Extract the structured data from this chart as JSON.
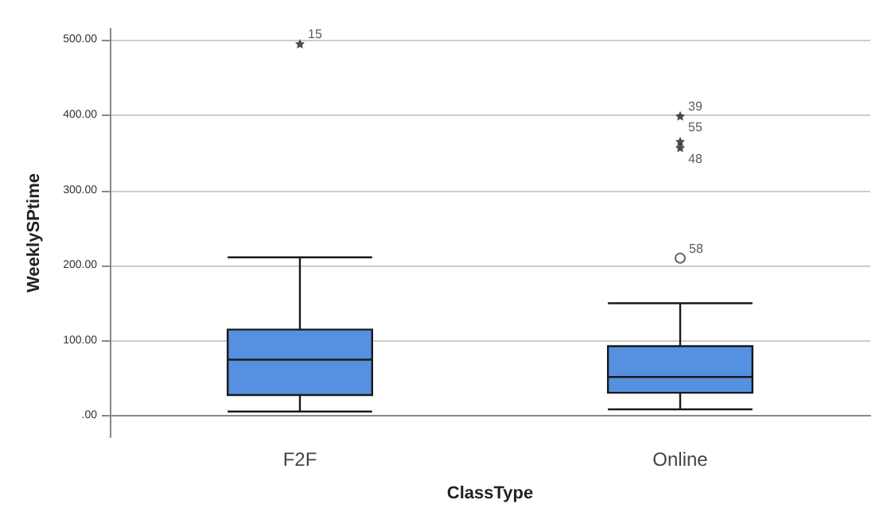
{
  "chart_data": {
    "type": "box",
    "xlabel": "ClassType",
    "ylabel": "WeeklySPtime",
    "categories": [
      "F2F",
      "Online"
    ],
    "boxes": [
      {
        "low": 6,
        "q1": 28,
        "median": 75,
        "q3": 115,
        "high": 211,
        "outliers": [
          495
        ]
      },
      {
        "low": 9,
        "q1": 31,
        "median": 52,
        "q3": 93,
        "high": 150,
        "outliers": [
          399,
          365,
          357,
          210
        ]
      }
    ],
    "color": "#5591e0",
    "ylim": [
      -28,
      515
    ],
    "yticks": [
      {
        "value": 0,
        "label": ".00"
      },
      {
        "value": 100,
        "label": "100.00"
      },
      {
        "value": 200,
        "label": "200.00"
      },
      {
        "value": 300,
        "label": "300.00"
      },
      {
        "value": 400,
        "label": "400.00"
      },
      {
        "value": 500,
        "label": "500.00"
      }
    ],
    "grid": "y",
    "annotations": [
      "15",
      "39",
      "55",
      "48",
      "58"
    ]
  }
}
